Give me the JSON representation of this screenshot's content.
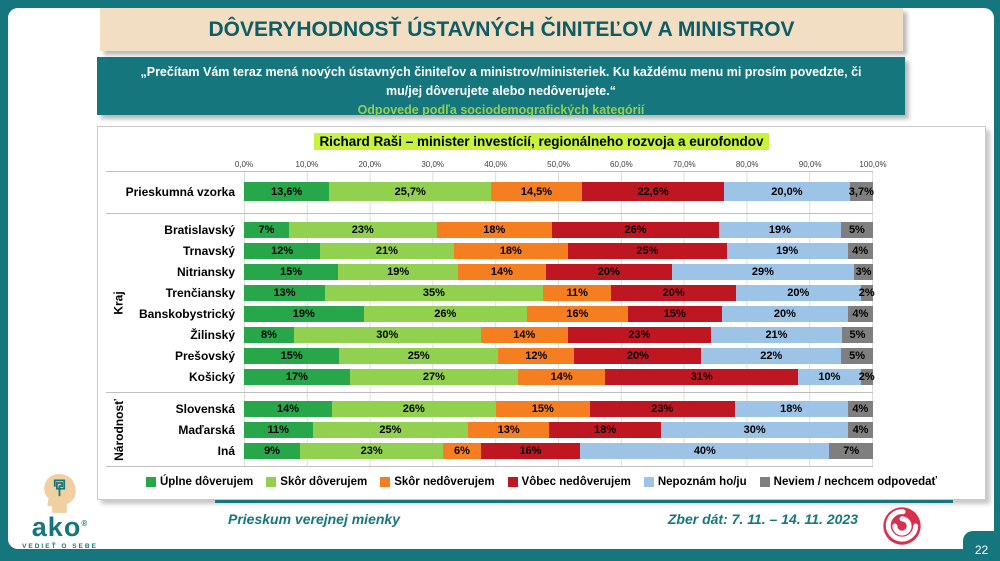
{
  "header": {
    "title": "DÔVERYHODNOSŤ ÚSTAVNÝCH ČINITEĽOV A MINISTROV"
  },
  "subtitle": {
    "quote": "„Prečítam Vám teraz mená nových ústavných činiteľov a ministrov/ministeriek. Ku každému menu mi prosím povedzte, či mu/jej dôverujete alebo nedôverujete.“",
    "note": "Odpovede podľa sociodemografických kategórií"
  },
  "chart_data": {
    "type": "bar",
    "stacked": true,
    "orientation": "horizontal",
    "title": "Richard Raši – minister investícií, regionálneho rozvoja a eurofondov",
    "x_ticks": [
      "0,0%",
      "10,0%",
      "20,0%",
      "30,0%",
      "40,0%",
      "50,0%",
      "60,0%",
      "70,0%",
      "80,0%",
      "90,0%",
      "100,0%"
    ],
    "xlim": [
      0,
      100
    ],
    "grid": true,
    "legend_position": "bottom",
    "series": [
      {
        "name": "Úplne dôverujem",
        "color": "#28a74a"
      },
      {
        "name": "Skôr dôverujem",
        "color": "#92d050"
      },
      {
        "name": "Skôr nedôverujem",
        "color": "#f57e20"
      },
      {
        "name": "Vôbec nedôverujem",
        "color": "#bf1722"
      },
      {
        "name": "Nepoznám ho/ju",
        "color": "#9dc3e6"
      },
      {
        "name": "Neviem / nechcem odpovedať",
        "color": "#7f7f7f"
      }
    ],
    "groups": [
      {
        "label": "",
        "rows": [
          {
            "category": "Prieskumná vzorka",
            "values": [
              13.6,
              25.7,
              14.5,
              22.6,
              20.0,
              3.7
            ],
            "labels": [
              "13,6%",
              "25,7%",
              "14,5%",
              "22,6%",
              "20,0%",
              "3,7%"
            ]
          }
        ]
      },
      {
        "label": "Kraj",
        "rows": [
          {
            "category": "Bratislavský",
            "values": [
              7,
              23,
              18,
              26,
              19,
              5
            ],
            "labels": [
              "7%",
              "23%",
              "18%",
              "26%",
              "19%",
              "5%"
            ]
          },
          {
            "category": "Trnavský",
            "values": [
              12,
              21,
              18,
              25,
              19,
              4
            ],
            "labels": [
              "12%",
              "21%",
              "18%",
              "25%",
              "19%",
              "4%"
            ]
          },
          {
            "category": "Nitriansky",
            "values": [
              15,
              19,
              14,
              20,
              29,
              3
            ],
            "labels": [
              "15%",
              "19%",
              "14%",
              "20%",
              "29%",
              "3%"
            ]
          },
          {
            "category": "Trenčiansky",
            "values": [
              13,
              35,
              11,
              20,
              20,
              2
            ],
            "labels": [
              "13%",
              "35%",
              "11%",
              "20%",
              "20%",
              "2%"
            ]
          },
          {
            "category": "Banskobystrický",
            "values": [
              19,
              26,
              16,
              15,
              20,
              4
            ],
            "labels": [
              "19%",
              "26%",
              "16%",
              "15%",
              "20%",
              "4%"
            ]
          },
          {
            "category": "Žilinský",
            "values": [
              8,
              30,
              14,
              23,
              21,
              5
            ],
            "labels": [
              "8%",
              "30%",
              "14%",
              "23%",
              "21%",
              "5%"
            ]
          },
          {
            "category": "Prešovský",
            "values": [
              15,
              25,
              12,
              20,
              22,
              5
            ],
            "labels": [
              "15%",
              "25%",
              "12%",
              "20%",
              "22%",
              "5%"
            ]
          },
          {
            "category": "Košický",
            "values": [
              17,
              27,
              14,
              31,
              10,
              2
            ],
            "labels": [
              "17%",
              "27%",
              "14%",
              "31%",
              "10%",
              "2%"
            ]
          }
        ]
      },
      {
        "label": "Národnosť",
        "rows": [
          {
            "category": "Slovenská",
            "values": [
              14,
              26,
              15,
              23,
              18,
              4
            ],
            "labels": [
              "14%",
              "26%",
              "15%",
              "23%",
              "18%",
              "4%"
            ]
          },
          {
            "category": "Maďarská",
            "values": [
              11,
              25,
              13,
              18,
              30,
              4
            ],
            "labels": [
              "11%",
              "25%",
              "13%",
              "18%",
              "30%",
              "4%"
            ]
          },
          {
            "category": "Iná",
            "values": [
              9,
              23,
              6,
              16,
              40,
              7
            ],
            "labels": [
              "9%",
              "23%",
              "6%",
              "16%",
              "40%",
              "7%"
            ]
          }
        ]
      }
    ]
  },
  "footer": {
    "left_text": "Prieskum verejnej mienky",
    "right_text": "Zber dát: 7. 11. – 14. 11. 2023",
    "page_number": "22",
    "brand": "ako",
    "brand_tagline": "VEDIEŤ O SEBE"
  },
  "colors": {
    "teal": "#15767d",
    "title_box": "#f2dec3",
    "title_text": "#0d5c66",
    "highlight": "#c7f23d",
    "note_green": "#92d050",
    "spiral_red": "#d9304f"
  }
}
